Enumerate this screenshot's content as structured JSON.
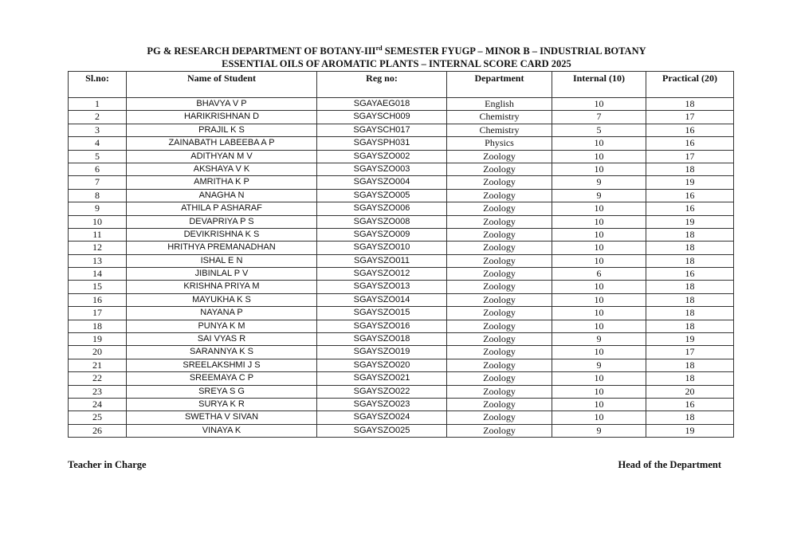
{
  "title_line1_pre": "PG & RESEARCH DEPARTMENT OF BOTANY-III",
  "title_line1_sup": "rd",
  "title_line1_post": " SEMESTER FYUGP – MINOR B – INDUSTRIAL BOTANY",
  "title_line2": "ESSENTIAL OILS OF AROMATIC PLANTS – INTERNAL SCORE CARD 2025",
  "table": {
    "headers": [
      "Sl.no:",
      "Name of Student",
      "Reg no:",
      "Department",
      "Internal (10)",
      "Practical (20)"
    ],
    "rows": [
      [
        "1",
        "BHAVYA V P",
        "SGAYAEG018",
        "English",
        "10",
        "18"
      ],
      [
        "2",
        "HARIKRISHNAN D",
        "SGAYSCH009",
        "Chemistry",
        "7",
        "17"
      ],
      [
        "3",
        "PRAJIL K S",
        "SGAYSCH017",
        "Chemistry",
        "5",
        "16"
      ],
      [
        "4",
        "ZAINABATH LABEEBA A P",
        "SGAYSPH031",
        "Physics",
        "10",
        "16"
      ],
      [
        "5",
        "ADITHYAN M V",
        "SGAYSZO002",
        "Zoology",
        "10",
        "17"
      ],
      [
        "6",
        "AKSHAYA V K",
        "SGAYSZO003",
        "Zoology",
        "10",
        "18"
      ],
      [
        "7",
        "AMRITHA K P",
        "SGAYSZO004",
        "Zoology",
        "9",
        "19"
      ],
      [
        "8",
        "ANAGHA N",
        "SGAYSZO005",
        "Zoology",
        "9",
        "16"
      ],
      [
        "9",
        "ATHILA P ASHARAF",
        "SGAYSZO006",
        "Zoology",
        "10",
        "16"
      ],
      [
        "10",
        "DEVAPRIYA P S",
        "SGAYSZO008",
        "Zoology",
        "10",
        "19"
      ],
      [
        "11",
        "DEVIKRISHNA K S",
        "SGAYSZO009",
        "Zoology",
        "10",
        "18"
      ],
      [
        "12",
        "HRITHYA PREMANADHAN",
        "SGAYSZO010",
        "Zoology",
        "10",
        "18"
      ],
      [
        "13",
        "ISHAL E N",
        "SGAYSZO011",
        "Zoology",
        "10",
        "18"
      ],
      [
        "14",
        "JIBINLAL P V",
        "SGAYSZO012",
        "Zoology",
        "6",
        "16"
      ],
      [
        "15",
        "KRISHNA PRIYA M",
        "SGAYSZO013",
        "Zoology",
        "10",
        "18"
      ],
      [
        "16",
        "MAYUKHA K S",
        "SGAYSZO014",
        "Zoology",
        "10",
        "18"
      ],
      [
        "17",
        "NAYANA P",
        "SGAYSZO015",
        "Zoology",
        "10",
        "18"
      ],
      [
        "18",
        "PUNYA K M",
        "SGAYSZO016",
        "Zoology",
        "10",
        "18"
      ],
      [
        "19",
        "SAI VYAS R",
        "SGAYSZO018",
        "Zoology",
        "9",
        "19"
      ],
      [
        "20",
        "SARANNYA K S",
        "SGAYSZO019",
        "Zoology",
        "10",
        "17"
      ],
      [
        "21",
        "SREELAKSHMI J S",
        "SGAYSZO020",
        "Zoology",
        "9",
        "18"
      ],
      [
        "22",
        "SREEMAYA C P",
        "SGAYSZO021",
        "Zoology",
        "10",
        "18"
      ],
      [
        "23",
        "SREYA S G",
        "SGAYSZO022",
        "Zoology",
        "10",
        "20"
      ],
      [
        "24",
        "SURYA K R",
        "SGAYSZO023",
        "Zoology",
        "10",
        "16"
      ],
      [
        "25",
        "SWETHA V SIVAN",
        "SGAYSZO024",
        "Zoology",
        "10",
        "18"
      ],
      [
        "26",
        "VINAYA K",
        "SGAYSZO025",
        "Zoology",
        "9",
        "19"
      ]
    ]
  },
  "footer": {
    "left": "Teacher in Charge",
    "right": "Head of the Department"
  }
}
